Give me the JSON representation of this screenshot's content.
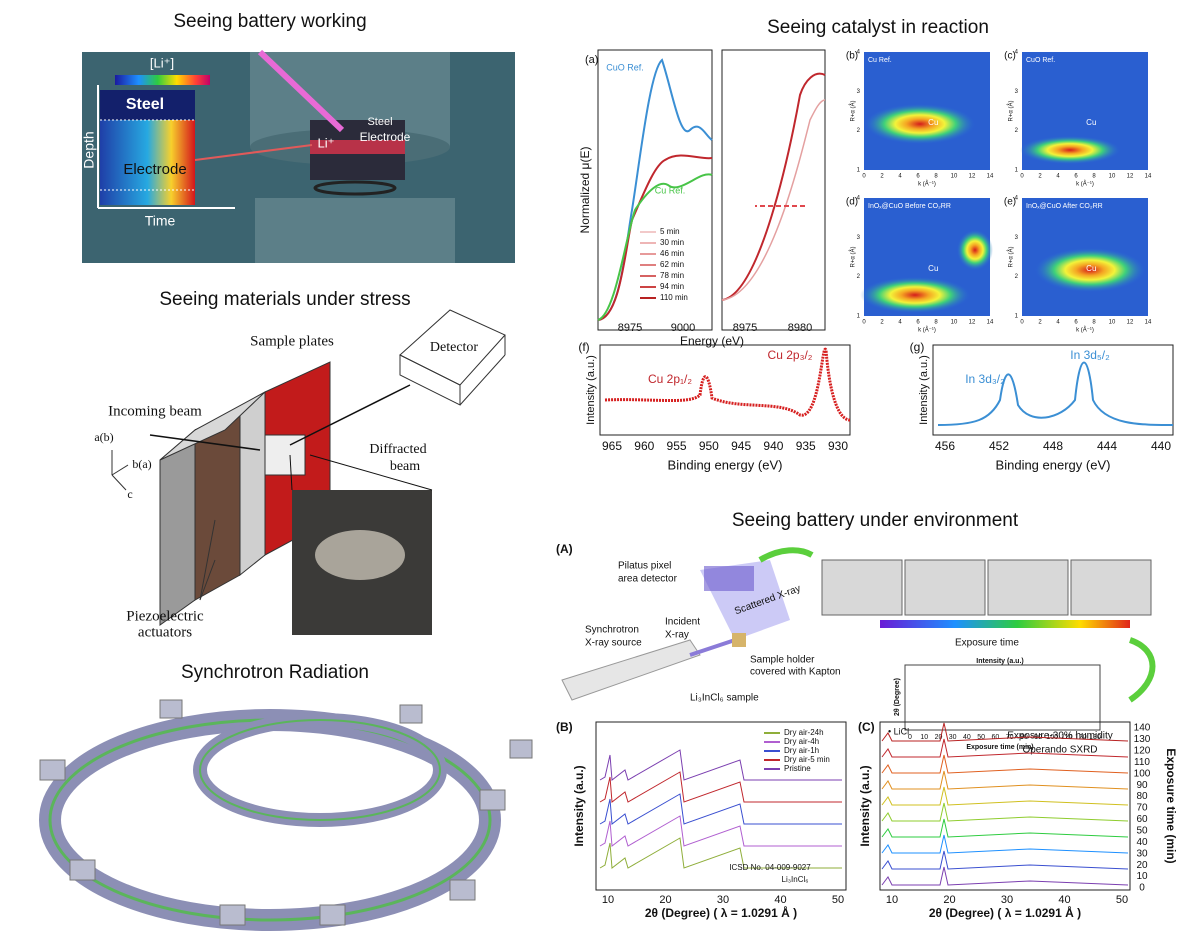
{
  "battery_working": {
    "title": "Seeing battery working",
    "colorbar_label": "[Li⁺]",
    "map_labels": [
      "Steel",
      "Electrode"
    ],
    "y_axis": "Depth",
    "x_axis": "Time",
    "cell_labels": [
      "Steel",
      "Li⁺",
      "Electrode"
    ]
  },
  "materials_stress": {
    "title": "Seeing materials under stress",
    "sample_plates": "Sample plates",
    "incoming_beam": "Incoming beam",
    "detector": "Detector",
    "diffracted_beam": [
      "Diffracted",
      "beam"
    ],
    "axes": [
      "a(b)",
      "b(a)",
      "c"
    ],
    "actuators": [
      "Piezoelectric",
      "actuators"
    ]
  },
  "synchrotron": {
    "title": "Synchrotron Radiation"
  },
  "catalyst": {
    "title": "Seeing catalyst in reaction",
    "xanes": {
      "panel": "(a)",
      "y_label": "Normalized μ(E)",
      "x_label": "Energy (eV)",
      "refs": [
        "CuO Ref.",
        "Cu Ref."
      ],
      "legend": [
        "5 min",
        "30 min",
        "46 min",
        "62 min",
        "78 min",
        "94 min",
        "110 min"
      ],
      "xticks_left": [
        "8975",
        "9000"
      ],
      "xticks_right": [
        "8975",
        "8980"
      ]
    },
    "wavelets": [
      {
        "panel": "(b)",
        "title": "Cu Ref.",
        "marker": "Cu"
      },
      {
        "panel": "(c)",
        "title": "CuO Ref.",
        "marker": "Cu"
      },
      {
        "panel": "(d)",
        "title": "InOₓ@CuO Before CO₂RR",
        "marker": "Cu"
      },
      {
        "panel": "(e)",
        "title": "InOₓ@CuO After CO₂RR",
        "marker": "Cu"
      }
    ],
    "wavelet_axes": {
      "x_label": "k (Å⁻¹)",
      "y_label": "R+α (Å)",
      "xticks": [
        "0",
        "2",
        "4",
        "6",
        "8",
        "10",
        "12",
        "14"
      ],
      "yticks": [
        "1",
        "2",
        "3",
        "4"
      ]
    },
    "xps_cu": {
      "panel": "(f)",
      "peaks": [
        "Cu 2p₁/₂",
        "Cu 2p₃/₂"
      ],
      "y_label": "Intensity (a.u.)",
      "x_label": "Binding energy (eV)",
      "xticks": [
        "965",
        "960",
        "955",
        "950",
        "945",
        "940",
        "935",
        "930"
      ]
    },
    "xps_in": {
      "panel": "(g)",
      "peaks": [
        "In 3d₃/₂",
        "In 3d₅/₂"
      ],
      "y_label": "Intensity (a.u.)",
      "x_label": "Binding energy (eV)",
      "xticks": [
        "456",
        "452",
        "448",
        "444",
        "440"
      ]
    }
  },
  "environment": {
    "title": "Seeing battery under environment",
    "scheme": {
      "panel": "(A)",
      "labels": [
        "Pilatus pixel",
        "area detector",
        "Scattered X-ray",
        "Synchrotron",
        "X-ray source",
        "Incident",
        "X-ray",
        "Sample holder",
        "covered with Kapton",
        "Li₃InCl₆ sample",
        "Exposure time"
      ],
      "inset": {
        "top_label": "Intensity (a.u.)",
        "y_label": "2θ (Degree)",
        "x_label": "Exposure time (min)",
        "xticks": [
          "0",
          "10",
          "20",
          "30",
          "40",
          "50",
          "60",
          "70",
          "80",
          "90",
          "100",
          "110",
          "120",
          "130"
        ]
      }
    },
    "panel_b": {
      "panel": "(B)",
      "legend": [
        "Dry air-24h",
        "Dry air-4h",
        "Dry air-1h",
        "Dry air-5 min",
        "Pristine"
      ],
      "reference": [
        "ICSD No. 04-009-9027",
        "Li₃InCl₆"
      ],
      "y_label": "Intensity (a.u.)",
      "x_label": "2θ (Degree) ( λ = 1.0291 Å )",
      "xticks": [
        "10",
        "20",
        "30",
        "40",
        "50"
      ]
    },
    "panel_c": {
      "panel": "(C)",
      "annotations": [
        "• LiCl",
        "Exposure-30% humidity",
        "Operando SXRD"
      ],
      "y_label": "Intensity (a.u.)",
      "y2_label": "Exposure time (min)",
      "x_label": "2θ (Degree) ( λ = 1.0291 Å )",
      "xticks": [
        "10",
        "20",
        "30",
        "40",
        "50"
      ],
      "y2ticks": [
        "0",
        "10",
        "20",
        "30",
        "40",
        "50",
        "60",
        "70",
        "80",
        "90",
        "100",
        "110",
        "120",
        "130",
        "140"
      ]
    }
  }
}
